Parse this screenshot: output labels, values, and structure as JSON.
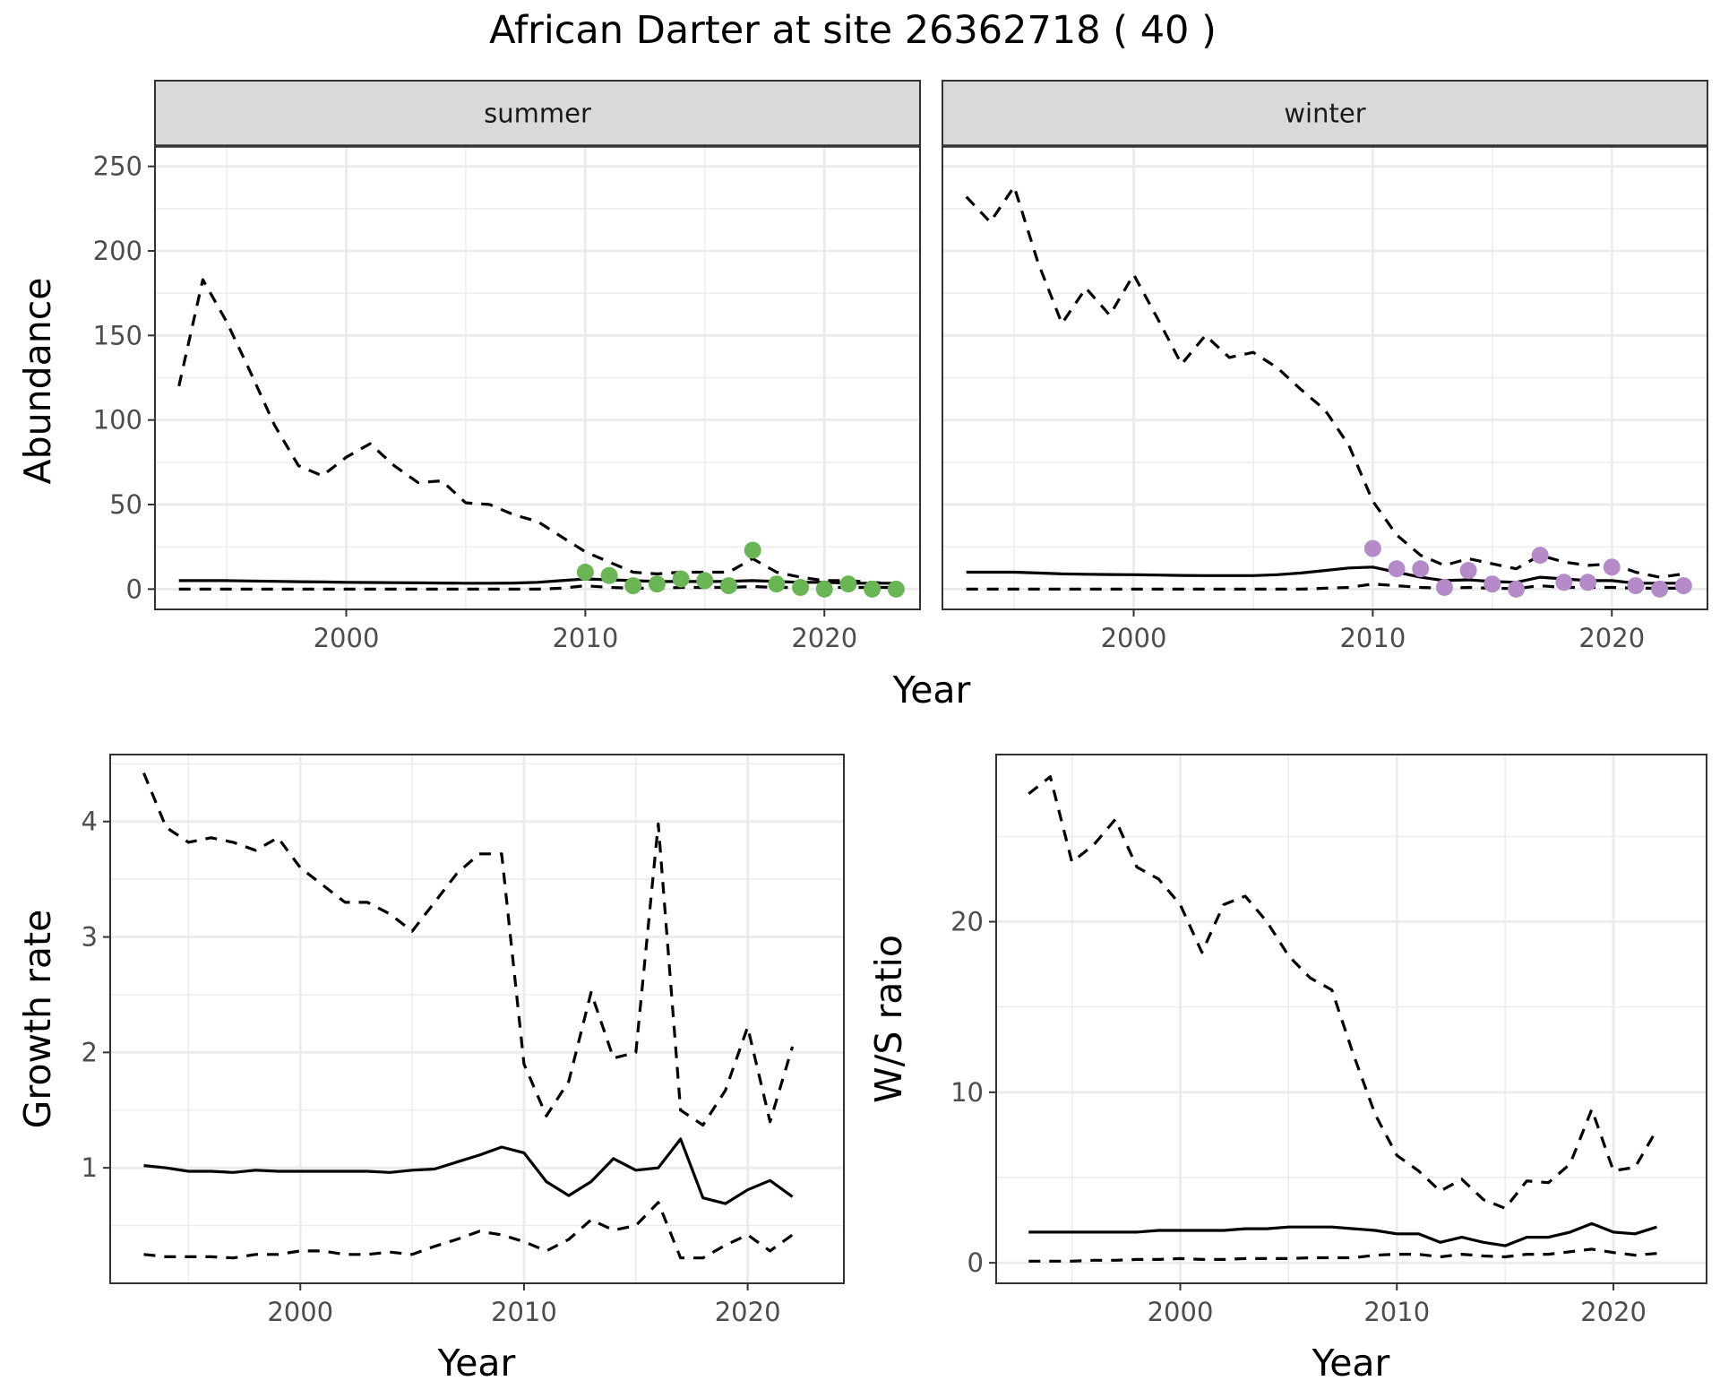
{
  "title": "African Darter at site 26362718 ( 40 )",
  "colors": {
    "summer_points": "#6ab655",
    "winter_points": "#b48ac8",
    "lines": "#000000",
    "strip_fill": "#d9d9d9",
    "grid": "#ebebeb"
  },
  "chart_data": [
    {
      "type": "line",
      "panel": "summer",
      "strip_label": "summer",
      "xlabel": "Year",
      "ylabel": "Abundance",
      "xlim": [
        1992,
        2024
      ],
      "ylim": [
        -12,
        262
      ],
      "xticks": [
        2000,
        2010,
        2020
      ],
      "yticks": [
        0,
        50,
        100,
        150,
        200,
        250
      ],
      "grid": true,
      "x": [
        1993,
        1994,
        1995,
        1996,
        1997,
        1998,
        1999,
        2000,
        2001,
        2002,
        2003,
        2004,
        2005,
        2006,
        2007,
        2008,
        2009,
        2010,
        2011,
        2012,
        2013,
        2014,
        2015,
        2016,
        2017,
        2018,
        2019,
        2020,
        2021,
        2022,
        2023
      ],
      "series": [
        {
          "role": "estimate",
          "style": "solid",
          "values": [
            5,
            5,
            5,
            4.8,
            4.6,
            4.4,
            4.2,
            4,
            3.9,
            3.8,
            3.7,
            3.6,
            3.5,
            3.5,
            3.6,
            4,
            5,
            6,
            5.5,
            5,
            4.5,
            4.5,
            4.5,
            4.6,
            5,
            4.5,
            4,
            4,
            3.5,
            3.5,
            3.5
          ]
        },
        {
          "role": "upper",
          "style": "dashed",
          "values": [
            120,
            183,
            158,
            128,
            97,
            73,
            67,
            78,
            86,
            73,
            63,
            64,
            51,
            50,
            44,
            40,
            31,
            22,
            16,
            10,
            9,
            10,
            10,
            10,
            18,
            10,
            7,
            5,
            5,
            4,
            3
          ]
        },
        {
          "role": "lower",
          "style": "dashed",
          "values": [
            0,
            0,
            0,
            0,
            0,
            0,
            0,
            0,
            0,
            0,
            0,
            0,
            0,
            0,
            0,
            0,
            0.5,
            2,
            1,
            0.5,
            0.5,
            1,
            1,
            1,
            1.5,
            1,
            1,
            1,
            1,
            1,
            1
          ]
        }
      ],
      "points": {
        "x": [
          2010,
          2011,
          2012,
          2013,
          2014,
          2015,
          2016,
          2017,
          2018,
          2019,
          2020,
          2021,
          2022,
          2023
        ],
        "y": [
          10,
          8,
          2,
          3,
          6,
          5,
          2,
          23,
          3,
          1,
          0,
          3,
          0,
          0
        ]
      }
    },
    {
      "type": "line",
      "panel": "winter",
      "strip_label": "winter",
      "xlabel": "Year",
      "ylabel": "Abundance",
      "xlim": [
        1992,
        2024
      ],
      "ylim": [
        -12,
        262
      ],
      "xticks": [
        2000,
        2010,
        2020
      ],
      "yticks": [
        0,
        50,
        100,
        150,
        200,
        250
      ],
      "grid": true,
      "x": [
        1993,
        1994,
        1995,
        1996,
        1997,
        1998,
        1999,
        2000,
        2001,
        2002,
        2003,
        2004,
        2005,
        2006,
        2007,
        2008,
        2009,
        2010,
        2011,
        2012,
        2013,
        2014,
        2015,
        2016,
        2017,
        2018,
        2019,
        2020,
        2021,
        2022,
        2023
      ],
      "series": [
        {
          "role": "estimate",
          "style": "solid",
          "values": [
            10,
            10,
            10,
            9.5,
            9,
            8.8,
            8.6,
            8.5,
            8.3,
            8.1,
            8,
            8,
            8,
            8.5,
            9.5,
            11,
            12.5,
            13,
            10,
            7,
            5,
            5.5,
            4.5,
            4,
            7,
            6,
            5,
            5,
            3.5,
            3.5,
            3.5
          ]
        },
        {
          "role": "upper",
          "style": "dashed",
          "values": [
            232,
            217,
            238,
            193,
            157,
            178,
            162,
            186,
            160,
            133,
            150,
            137,
            140,
            131,
            118,
            106,
            85,
            52,
            32,
            20,
            14,
            18,
            15,
            12,
            20,
            16,
            14,
            15,
            10,
            7,
            9
          ]
        },
        {
          "role": "lower",
          "style": "dashed",
          "values": [
            0,
            0,
            0,
            0,
            0,
            0,
            0,
            0,
            0,
            0,
            0,
            0,
            0,
            0,
            0,
            0.5,
            1,
            3,
            2,
            1,
            0.5,
            1,
            0.5,
            0.3,
            2,
            1,
            1,
            1,
            0.5,
            0.5,
            0.5
          ]
        }
      ],
      "points": {
        "x": [
          2010,
          2011,
          2012,
          2013,
          2014,
          2015,
          2016,
          2017,
          2018,
          2019,
          2020,
          2021,
          2022,
          2023
        ],
        "y": [
          24,
          12,
          12,
          1,
          11,
          3,
          0,
          20,
          4,
          4,
          13,
          2,
          0,
          2
        ]
      }
    },
    {
      "type": "line",
      "panel": "growth",
      "xlabel": "Year",
      "ylabel": "Growth rate",
      "xlim": [
        1991.5,
        2024.3
      ],
      "ylim": [
        0,
        4.58
      ],
      "xticks": [
        2000,
        2010,
        2020
      ],
      "yticks": [
        1,
        2,
        3,
        4
      ],
      "grid": true,
      "x": [
        1993,
        1994,
        1995,
        1996,
        1997,
        1998,
        1999,
        2000,
        2001,
        2002,
        2003,
        2004,
        2005,
        2006,
        2007,
        2008,
        2009,
        2010,
        2011,
        2012,
        2013,
        2014,
        2015,
        2016,
        2017,
        2018,
        2019,
        2020,
        2021,
        2022
      ],
      "series": [
        {
          "role": "estimate",
          "style": "solid",
          "values": [
            1.02,
            1,
            0.97,
            0.97,
            0.96,
            0.98,
            0.97,
            0.97,
            0.97,
            0.97,
            0.97,
            0.96,
            0.98,
            0.99,
            1.05,
            1.11,
            1.18,
            1.13,
            0.88,
            0.76,
            0.88,
            1.08,
            0.98,
            1,
            1.25,
            0.74,
            0.69,
            0.81,
            0.89,
            0.75
          ]
        },
        {
          "role": "upper",
          "style": "dashed",
          "values": [
            4.42,
            3.95,
            3.82,
            3.86,
            3.82,
            3.75,
            3.86,
            3.6,
            3.45,
            3.3,
            3.3,
            3.2,
            3.05,
            3.3,
            3.55,
            3.72,
            3.72,
            1.9,
            1.45,
            1.75,
            2.52,
            1.95,
            2,
            3.98,
            1.5,
            1.37,
            1.67,
            2.22,
            1.4,
            2.05
          ]
        },
        {
          "role": "lower",
          "style": "dashed",
          "values": [
            0.25,
            0.23,
            0.23,
            0.23,
            0.22,
            0.25,
            0.25,
            0.28,
            0.28,
            0.25,
            0.25,
            0.27,
            0.25,
            0.32,
            0.38,
            0.45,
            0.42,
            0.36,
            0.28,
            0.38,
            0.55,
            0.46,
            0.5,
            0.7,
            0.22,
            0.22,
            0.33,
            0.42,
            0.28,
            0.42
          ]
        }
      ]
    },
    {
      "type": "line",
      "panel": "ratio",
      "xlabel": "Year",
      "ylabel": "W/S ratio",
      "xlim": [
        1991.5,
        2024.3
      ],
      "ylim": [
        -1.2,
        29.8
      ],
      "xticks": [
        2000,
        2010,
        2020
      ],
      "yticks": [
        0,
        10,
        20
      ],
      "grid": true,
      "x": [
        1993,
        1994,
        1995,
        1996,
        1997,
        1998,
        1999,
        2000,
        2001,
        2002,
        2003,
        2004,
        2005,
        2006,
        2007,
        2008,
        2009,
        2010,
        2011,
        2012,
        2013,
        2014,
        2015,
        2016,
        2017,
        2018,
        2019,
        2020,
        2021,
        2022
      ],
      "series": [
        {
          "role": "estimate",
          "style": "solid",
          "values": [
            1.8,
            1.8,
            1.8,
            1.8,
            1.8,
            1.8,
            1.9,
            1.9,
            1.9,
            1.9,
            2,
            2,
            2.1,
            2.1,
            2.1,
            2,
            1.9,
            1.7,
            1.7,
            1.2,
            1.5,
            1.2,
            1,
            1.5,
            1.5,
            1.8,
            2.3,
            1.8,
            1.7,
            2.1
          ]
        },
        {
          "role": "upper",
          "style": "dashed",
          "values": [
            27.5,
            28.5,
            23.5,
            24.5,
            26,
            23.2,
            22.5,
            21,
            18.2,
            21,
            21.5,
            20,
            18,
            16.7,
            16,
            12.2,
            8.7,
            6.3,
            5.4,
            4.2,
            4.9,
            3.7,
            3.2,
            4.8,
            4.7,
            5.8,
            9,
            5.4,
            5.6,
            7.8
          ]
        },
        {
          "role": "lower",
          "style": "dashed",
          "values": [
            0.1,
            0.1,
            0.1,
            0.15,
            0.15,
            0.2,
            0.2,
            0.25,
            0.2,
            0.2,
            0.25,
            0.25,
            0.25,
            0.3,
            0.3,
            0.3,
            0.45,
            0.5,
            0.5,
            0.35,
            0.5,
            0.4,
            0.35,
            0.5,
            0.5,
            0.65,
            0.8,
            0.6,
            0.45,
            0.55
          ]
        }
      ]
    }
  ]
}
